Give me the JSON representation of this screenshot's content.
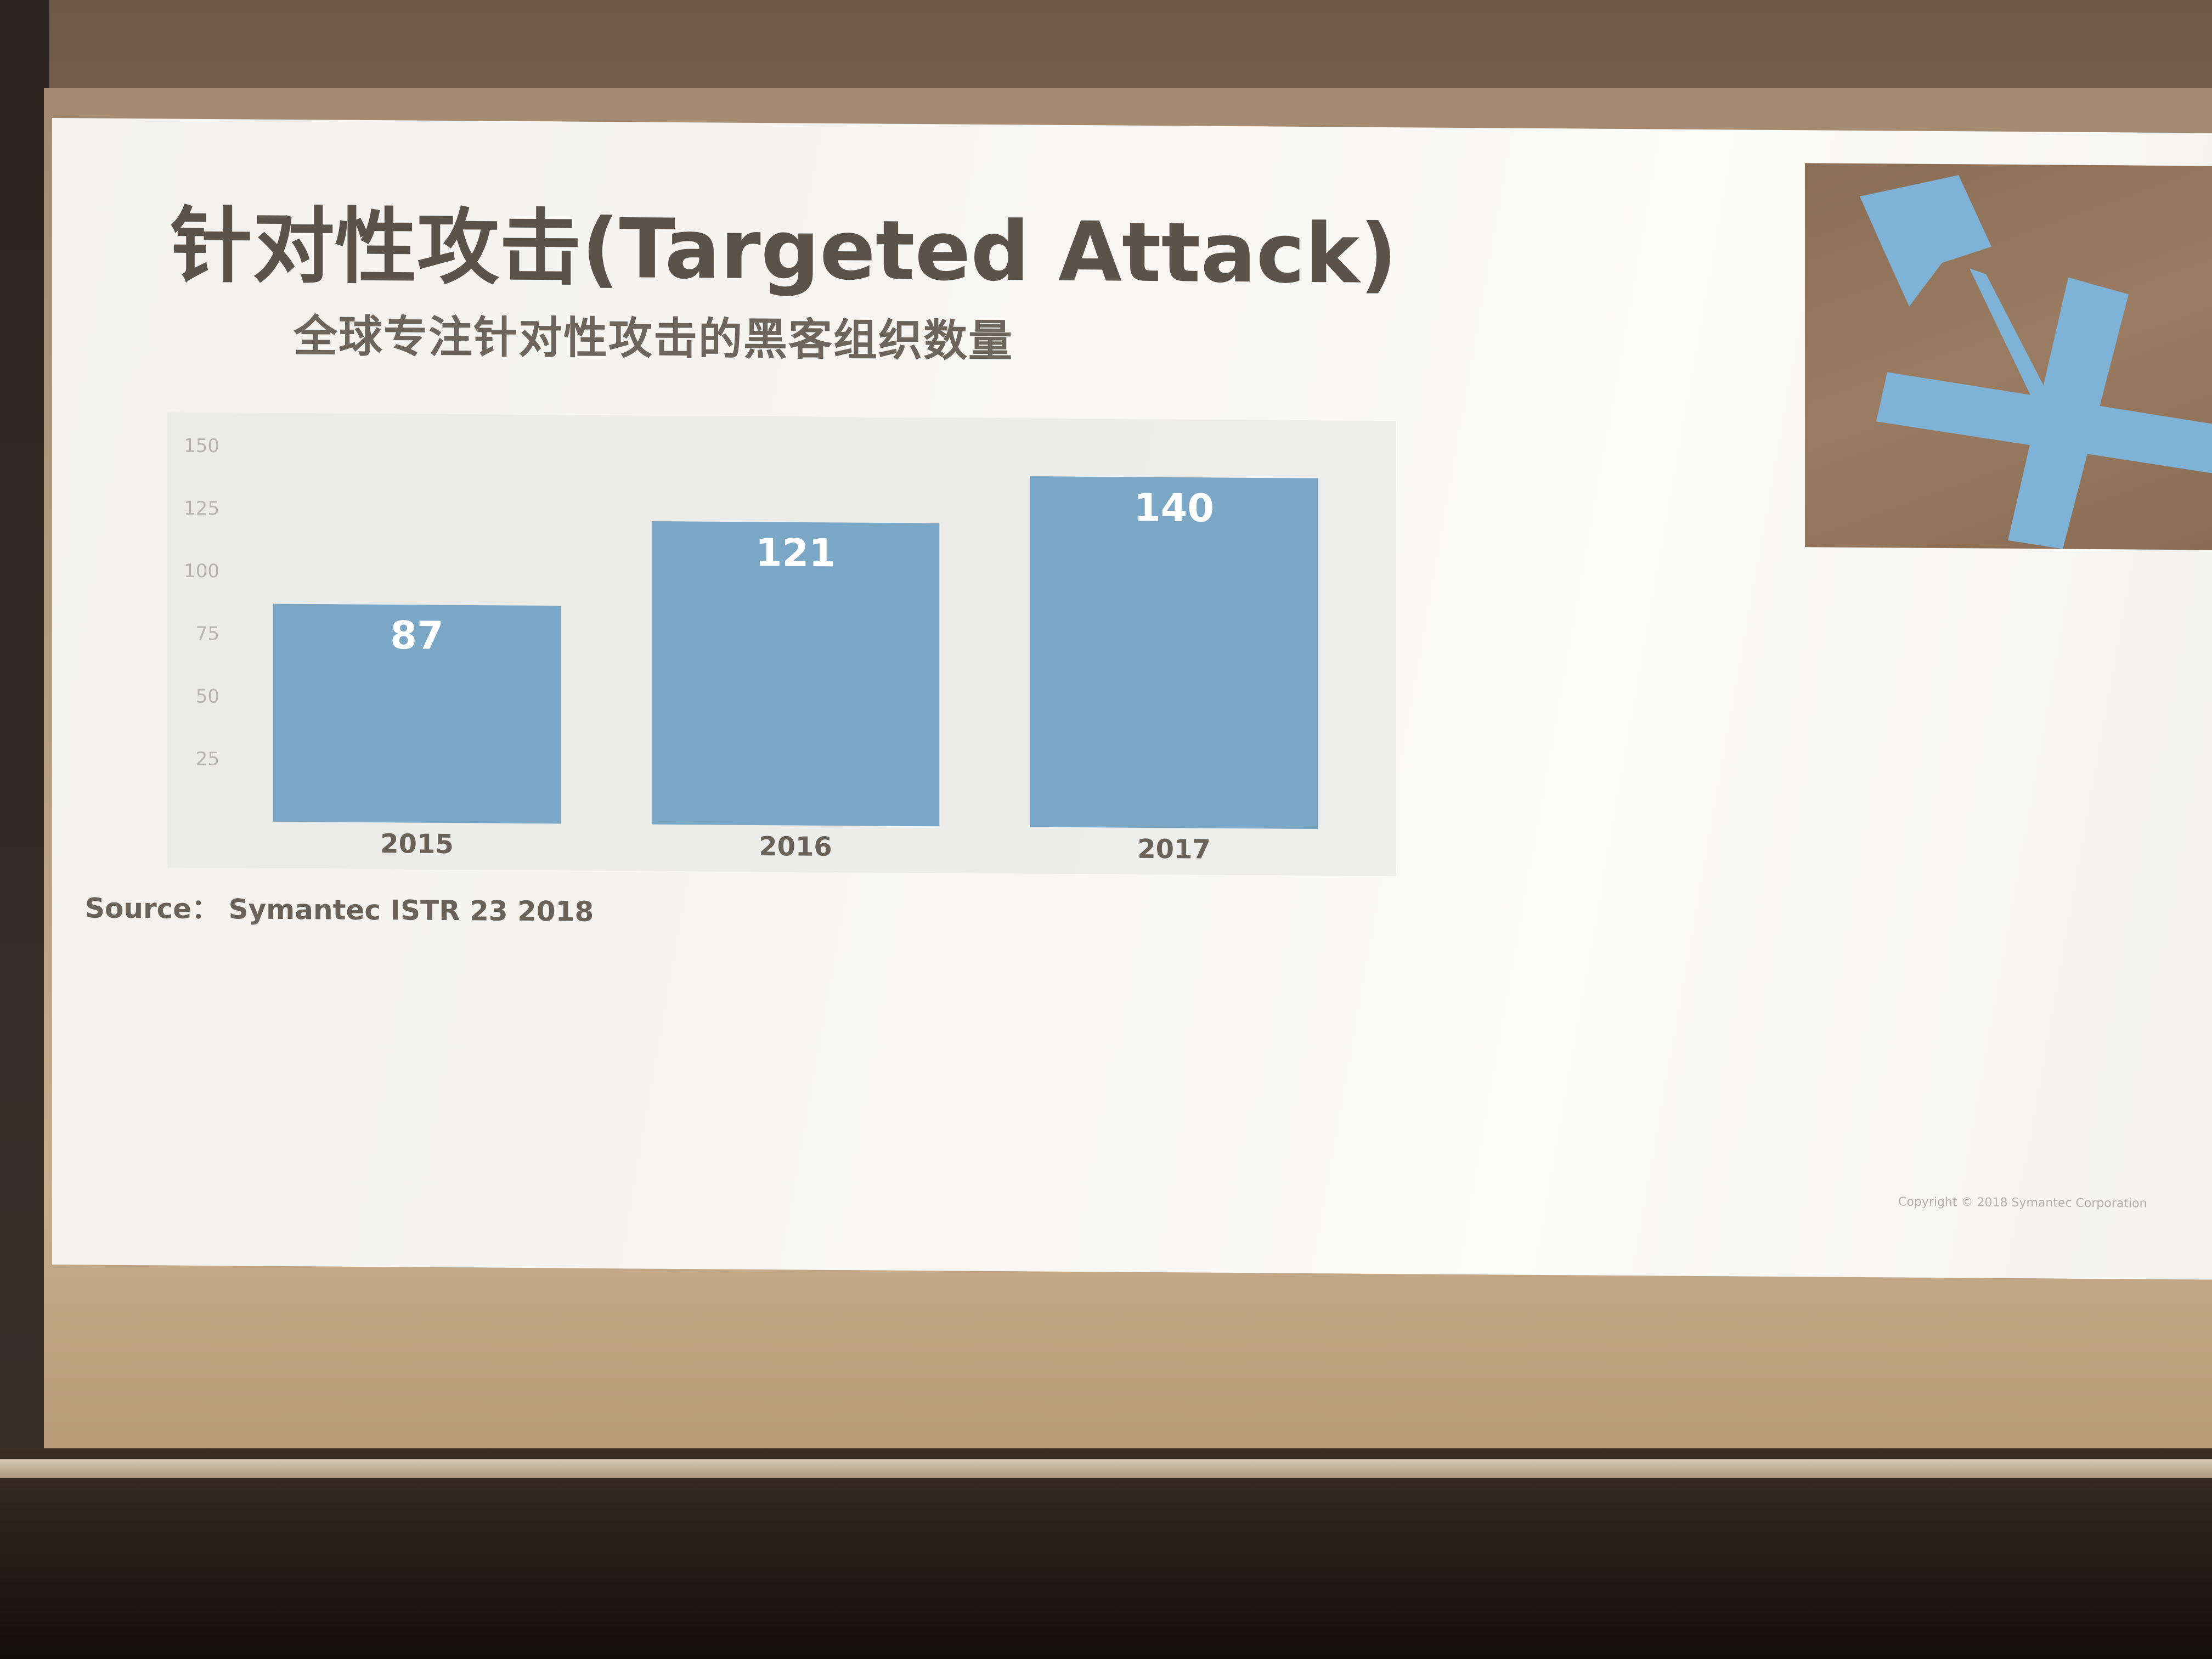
{
  "slide": {
    "title": "针对性攻击(Targeted Attack)",
    "subtitle": "全球专注针对性攻击的黑客组织数量",
    "source": "Source： Symantec ISTR 23 2018",
    "copyright": "Copyright © 2018 Symantec Corporation"
  },
  "colors": {
    "bar": "#7ba7c7",
    "title": "#5b524a",
    "image_bg": "#8a6d55"
  },
  "chart_data": {
    "type": "bar",
    "title": "全球专注针对性攻击的黑客组织数量",
    "categories": [
      "2015",
      "2016",
      "2017"
    ],
    "values": [
      87,
      121,
      140
    ],
    "data_labels": [
      "87",
      "121",
      "140"
    ],
    "yticks": [
      25,
      50,
      75,
      100,
      125,
      150
    ],
    "ylim": [
      0,
      150
    ],
    "xlabel": "",
    "ylabel": "",
    "grid": false,
    "legend": "none"
  }
}
